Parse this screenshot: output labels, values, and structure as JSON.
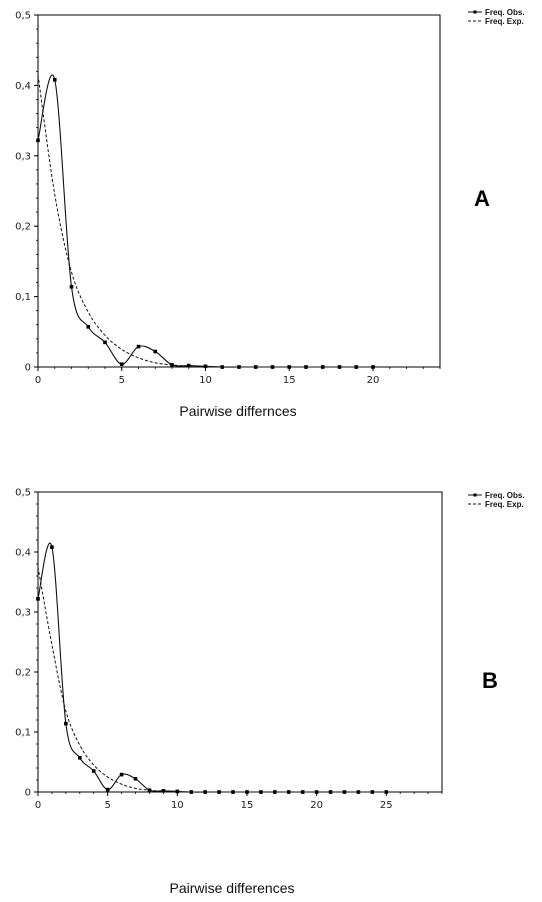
{
  "chart_data": [
    {
      "type": "line",
      "panel_letter": "A",
      "xlabel": "Pairwise differnces",
      "ylabel": "",
      "xlim": [
        0,
        24
      ],
      "ylim": [
        0,
        0.5
      ],
      "x_ticks": [
        0,
        5,
        10,
        15,
        20
      ],
      "x_tick_labels": [
        "0",
        "5",
        "10",
        "15",
        "20"
      ],
      "y_ticks": [
        0,
        0.1,
        0.2,
        0.3,
        0.4,
        0.5
      ],
      "y_tick_labels": [
        "0",
        "0,1",
        "0,2",
        "0,3",
        "0,4",
        "0,5"
      ],
      "legend": "top-right",
      "series": [
        {
          "name": "Freq. Obs.",
          "style": "solid",
          "markers": true,
          "x": [
            0,
            1,
            2,
            3,
            4,
            5,
            6,
            7,
            8,
            9,
            10,
            11,
            12,
            13,
            14,
            15,
            16,
            17,
            18,
            19,
            20
          ],
          "y": [
            0.322,
            0.408,
            0.114,
            0.057,
            0.035,
            0.004,
            0.029,
            0.022,
            0.003,
            0.002,
            0.001,
            0,
            0,
            0,
            0,
            0,
            0,
            0,
            0,
            0,
            0
          ]
        },
        {
          "name": "Freq. Exp.",
          "style": "dashed",
          "markers": false,
          "x": [
            0,
            1,
            2,
            3,
            4,
            5,
            6,
            7,
            8,
            9,
            10,
            11,
            12,
            13,
            14,
            15,
            16,
            17,
            18,
            19,
            20
          ],
          "y": [
            0.415,
            0.245,
            0.135,
            0.078,
            0.045,
            0.025,
            0.013,
            0.006,
            0.003,
            0.001,
            0,
            0,
            0,
            0,
            0,
            0,
            0,
            0,
            0,
            0,
            0
          ]
        }
      ]
    },
    {
      "type": "line",
      "panel_letter": "B",
      "xlabel": "Pairwise differences",
      "ylabel": "",
      "xlim": [
        0,
        29
      ],
      "ylim": [
        0,
        0.5
      ],
      "x_ticks": [
        0,
        5,
        10,
        15,
        20,
        25
      ],
      "x_tick_labels": [
        "0",
        "5",
        "10",
        "15",
        "20",
        "25"
      ],
      "y_ticks": [
        0,
        0.1,
        0.2,
        0.3,
        0.4,
        0.5
      ],
      "y_tick_labels": [
        "0",
        "0,1",
        "0,2",
        "0,3",
        "0,4",
        "0,5"
      ],
      "legend": "top-right",
      "series": [
        {
          "name": "Freq. Obs.",
          "style": "solid",
          "markers": true,
          "x": [
            0,
            1,
            2,
            3,
            4,
            5,
            6,
            7,
            8,
            9,
            10,
            11,
            12,
            13,
            14,
            15,
            16,
            17,
            18,
            19,
            20,
            21,
            22,
            23,
            24,
            25
          ],
          "y": [
            0.322,
            0.408,
            0.114,
            0.057,
            0.035,
            0.004,
            0.029,
            0.022,
            0.003,
            0.002,
            0.001,
            0,
            0,
            0,
            0,
            0,
            0,
            0,
            0,
            0,
            0,
            0,
            0,
            0,
            0,
            0
          ]
        },
        {
          "name": "Freq. Exp.",
          "style": "dashed",
          "markers": false,
          "x": [
            0,
            1,
            2,
            3,
            4,
            5,
            6,
            7,
            8,
            9,
            10,
            11,
            12,
            13,
            14,
            15,
            16,
            17,
            18,
            19,
            20,
            21,
            22,
            23,
            24,
            25
          ],
          "y": [
            0.375,
            0.245,
            0.135,
            0.078,
            0.045,
            0.025,
            0.013,
            0.006,
            0.003,
            0.001,
            0,
            0,
            0,
            0,
            0,
            0,
            0,
            0,
            0,
            0,
            0,
            0,
            0,
            0,
            0,
            0
          ]
        }
      ]
    }
  ]
}
